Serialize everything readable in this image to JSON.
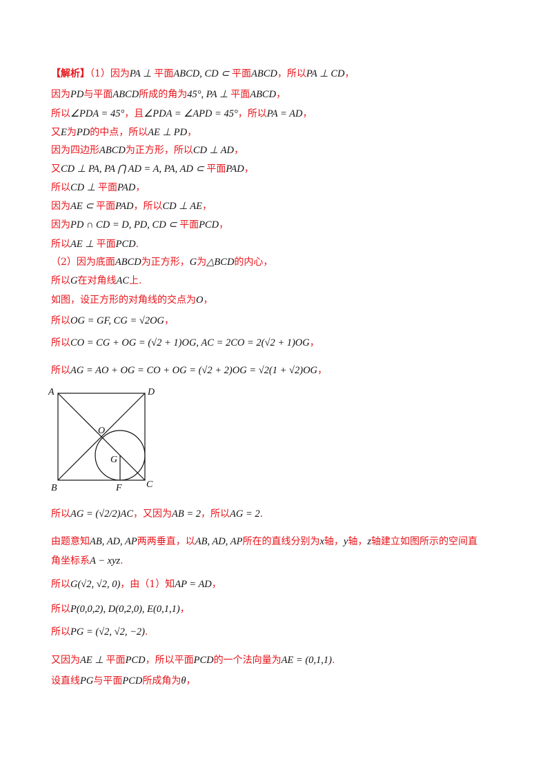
{
  "lines": [
    {
      "tag": "【解析】",
      "text": "（1）因为",
      "m1": "PA ⊥ ",
      "t2": "平面",
      "m2": "ABCD, CD ⊂ ",
      "t3": "平面",
      "m3": "ABCD",
      "t4": "，所以",
      "m4": "PA ⊥ CD",
      "t5": "，"
    },
    {
      "t1": "因为",
      "m1": "PD",
      "t2": "与平面",
      "m2": "ABCD",
      "t3": "所成的角为",
      "m3": "45°, PA ⊥ ",
      "t4": "平面",
      "m4": "ABCD",
      "t5": "，"
    },
    {
      "t1": "所以",
      "m1": "∠PDA = 45°",
      "t2": "，且",
      "m2": "∠PDA = ∠APD = 45°",
      "t3": "，所以",
      "m3": "PA = AD",
      "t4": "，"
    },
    {
      "t1": "又",
      "m1": "E",
      "t2": "为",
      "m2": "PD",
      "t3": "的中点，所以",
      "m3": "AE ⊥ PD",
      "t4": "，"
    },
    {
      "t1": "因为四边形",
      "m1": "ABCD",
      "t2": "为正方形，所以",
      "m2": "CD ⊥ AD",
      "t3": "，"
    },
    {
      "t1": "又",
      "m1": "CD ⊥ PA, PA ⋂ AD = A, PA, AD ⊂ ",
      "t2": "平面",
      "m2": "PAD",
      "t3": "，"
    },
    {
      "t1": "所以",
      "m1": "CD ⊥ ",
      "t2": "平面",
      "m2": "PAD",
      "t3": "，"
    },
    {
      "t1": "因为",
      "m1": "AE ⊂ ",
      "t2": "平面",
      "m2": "PAD",
      "t3": "，所以",
      "m3": "CD ⊥ AE",
      "t4": "，"
    },
    {
      "t1": "因为",
      "m1": "PD ∩ CD = D, PD, CD ⊂ ",
      "t2": "平面",
      "m2": "PCD",
      "t3": "，"
    },
    {
      "t1": "所以",
      "m1": "AE ⊥ ",
      "t2": "平面",
      "m2": "PCD",
      "t3": "."
    },
    {
      "t1": "（2）因为底面",
      "m1": "ABCD",
      "t2": "为正方形，",
      "m2": "G",
      "t3": "为",
      "m3": "△BCD",
      "t4": "的内心，"
    },
    {
      "t1": "所以",
      "m1": "G",
      "t2": "在对角线",
      "m2": "AC",
      "t3": "上."
    },
    {
      "t1": "如图，设正方形的对角线的交点为",
      "m1": "O",
      "t2": "，"
    },
    {
      "t1": "所以",
      "m1": "OG = GF, CG = √2OG",
      "t2": "，"
    },
    {
      "t1": "所以",
      "m1": "CO = CG + OG = (√2 + 1)OG, AC = 2CO = 2(√2 + 1)OG",
      "t2": "，"
    },
    {
      "t1": "所以",
      "m1": "AG = AO + OG = CO + OG = (√2 + 2)OG = √2(1 + √2)OG",
      "t2": "，"
    },
    {
      "t1": "所以",
      "m1": "AG = (√2/2)AC",
      "t2": "，又因为",
      "m2": "AB = 2",
      "t3": "，所以",
      "m3": "AG = 2",
      "t4": "."
    },
    {
      "t1": "由题意知",
      "m1": "AB, AD, AP",
      "t2": "两两垂直，以",
      "m2": "AB, AD, AP",
      "t3": "所在的直线分别为",
      "m3": "x",
      "t4": "轴，",
      "m4": "y",
      "t5": "轴，",
      "m5": "z",
      "t6": "轴建立如图所示的空间直"
    },
    {
      "t1": "角坐标系",
      "m1": "A − xyz",
      "t2": "."
    },
    {
      "t1": "所以",
      "m1": "G(√2, √2, 0)",
      "t2": "，由（1）知",
      "m2": "AP = AD",
      "t3": "，"
    },
    {
      "t1": "所以",
      "m1": "P(0,0,2), D(0,2,0), E(0,1,1)",
      "t2": "，"
    },
    {
      "t1": "所以",
      "m1": "PG = (√2, √2, −2)",
      "t2": "."
    },
    {
      "t1": "又因为",
      "m1": "AE ⊥ ",
      "t2": "平面",
      "m2": "PCD",
      "t3": "，所以平面",
      "m3": "PCD",
      "t4": "的一个法向量为",
      "m4": "AE = (0,1,1)",
      "t5": "."
    },
    {
      "t1": "设直线",
      "m1": "PG",
      "t2": "与平面",
      "m2": "PCD",
      "t3": "所成角为",
      "m3": "θ",
      "t4": "，"
    }
  ],
  "figure": {
    "labels": {
      "A": "A",
      "D": "D",
      "B": "B",
      "C": "C",
      "O": "O",
      "G": "G",
      "F": "F"
    }
  }
}
